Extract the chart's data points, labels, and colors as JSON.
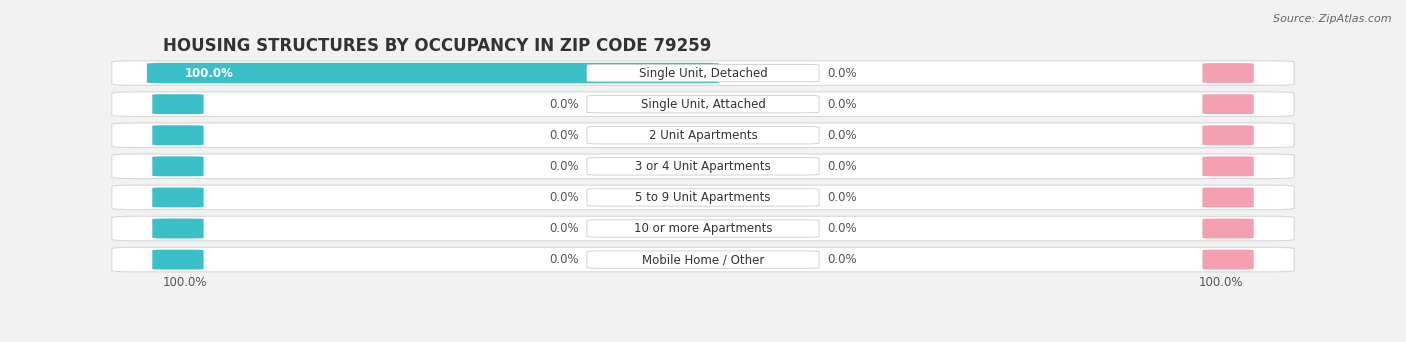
{
  "title": "HOUSING STRUCTURES BY OCCUPANCY IN ZIP CODE 79259",
  "source": "Source: ZipAtlas.com",
  "categories": [
    "Single Unit, Detached",
    "Single Unit, Attached",
    "2 Unit Apartments",
    "3 or 4 Unit Apartments",
    "5 to 9 Unit Apartments",
    "10 or more Apartments",
    "Mobile Home / Other"
  ],
  "owner_values": [
    100.0,
    0.0,
    0.0,
    0.0,
    0.0,
    0.0,
    0.0
  ],
  "renter_values": [
    0.0,
    0.0,
    0.0,
    0.0,
    0.0,
    0.0,
    0.0
  ],
  "owner_color": "#3bbfc9",
  "renter_color": "#f4a0b0",
  "background_color": "#f2f2f2",
  "bar_bg_color": "#ffffff",
  "bar_edge_color": "#d8d8d8",
  "title_fontsize": 12,
  "label_fontsize": 8.5,
  "value_fontsize": 8.5,
  "legend_fontsize": 9,
  "source_fontsize": 8,
  "figsize": [
    14.06,
    3.42
  ],
  "dpi": 100,
  "bottom_left_label": "100.0%",
  "bottom_right_label": "100.0%"
}
